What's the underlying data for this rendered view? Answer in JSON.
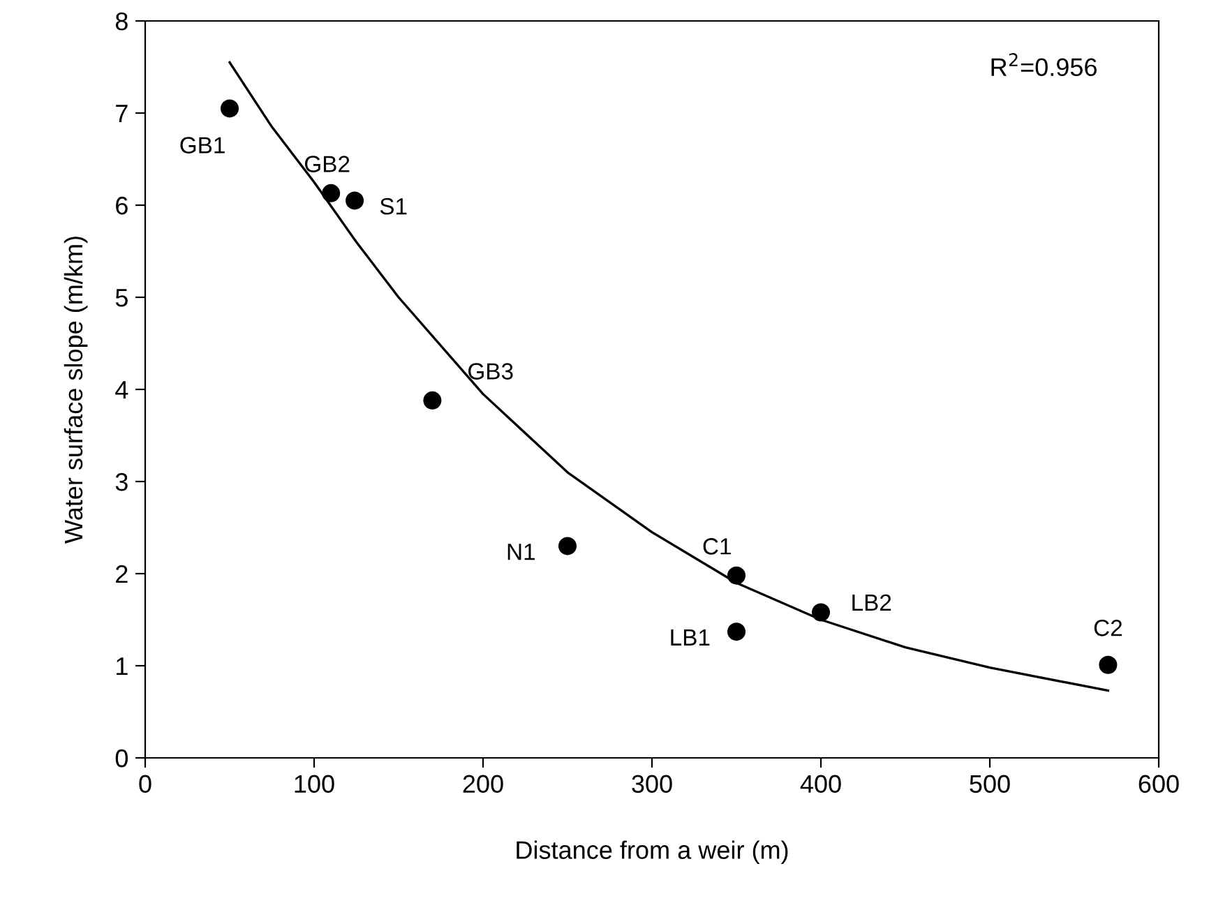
{
  "chart_data": {
    "type": "scatter",
    "xlabel": "Distance from a weir (m)",
    "ylabel": "Water surface slope (m/km)",
    "xlim": [
      0,
      600
    ],
    "ylim": [
      0,
      8
    ],
    "xticks": [
      0,
      100,
      200,
      300,
      400,
      500,
      600
    ],
    "yticks": [
      0,
      1,
      2,
      3,
      4,
      5,
      6,
      7,
      8
    ],
    "grid": false,
    "legend": false,
    "series": [
      {
        "color": "#000000",
        "marker": "circle",
        "x": [
          50,
          110,
          124,
          170,
          250,
          350,
          350,
          400,
          570
        ],
        "values": [
          7.05,
          6.13,
          6.05,
          3.88,
          2.3,
          1.98,
          1.37,
          1.58,
          1.01
        ]
      },
      {
        "type": "line",
        "color": "#000000",
        "marker": "none",
        "line_style": "solid",
        "x": [
          50,
          75,
          100,
          125,
          150,
          200,
          250,
          300,
          350,
          400,
          450,
          500,
          570
        ],
        "values": [
          7.55,
          6.85,
          6.25,
          5.6,
          5.0,
          3.95,
          3.1,
          2.45,
          1.9,
          1.5,
          1.2,
          0.98,
          0.73
        ]
      }
    ],
    "annotations": [
      {
        "text": "GB1",
        "x": 50,
        "y": 7.05
      },
      {
        "text": "GB2",
        "x": 110,
        "y": 6.13
      },
      {
        "text": "S1",
        "x": 124,
        "y": 6.05
      },
      {
        "text": "GB3",
        "x": 170,
        "y": 3.88
      },
      {
        "text": "N1",
        "x": 250,
        "y": 2.3
      },
      {
        "text": "C1",
        "x": 350,
        "y": 1.98
      },
      {
        "text": "LB1",
        "x": 350,
        "y": 1.37
      },
      {
        "text": "LB2",
        "x": 400,
        "y": 1.58
      },
      {
        "text": "C2",
        "x": 570,
        "y": 1.01
      },
      "R$^{2}$=0.956"
    ]
  }
}
